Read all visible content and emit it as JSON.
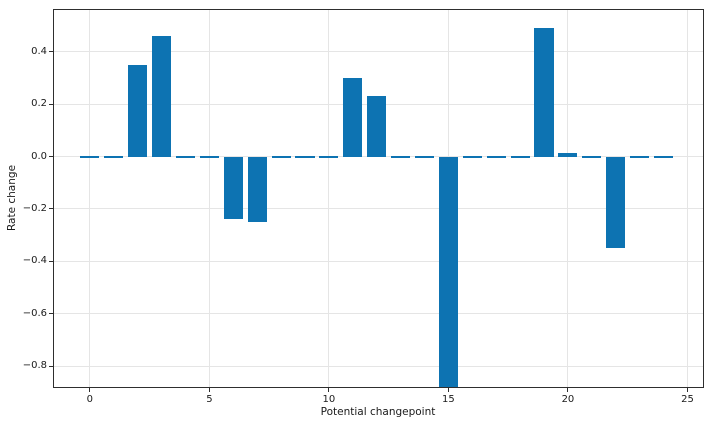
{
  "chart_data": {
    "type": "bar",
    "title": "",
    "xlabel": "Potential changepoint",
    "ylabel": "Rate change",
    "x": [
      0,
      1,
      2,
      3,
      4,
      5,
      6,
      7,
      8,
      9,
      10,
      11,
      12,
      13,
      14,
      15,
      16,
      17,
      18,
      19,
      20,
      21,
      22,
      23,
      24
    ],
    "values": [
      0,
      0,
      0.35,
      0.46,
      0,
      0,
      -0.24,
      -0.25,
      0,
      0,
      0,
      0.3,
      0.23,
      0,
      0,
      -0.88,
      0,
      0,
      0,
      0.49,
      0.015,
      0,
      -0.35,
      0,
      0
    ],
    "bar_width": 0.8,
    "bar_color": "#0d73b2",
    "xlim": [
      -1.5,
      25.65
    ],
    "ylim": [
      -0.88,
      0.56
    ],
    "xticks": {
      "values": [
        0,
        5,
        10,
        15,
        20,
        25
      ],
      "labels": [
        "0",
        "5",
        "10",
        "15",
        "20",
        "25"
      ]
    },
    "yticks": {
      "values": [
        0.4,
        0.2,
        0,
        -0.2,
        -0.4,
        -0.6,
        -0.8
      ],
      "labels": [
        "0.4",
        "0.2",
        "0.0",
        "−0.2",
        "−0.4",
        "−0.6",
        "−0.8"
      ]
    },
    "grid": true,
    "legend_position": "none",
    "colors": {
      "grid": "#e5e5e5",
      "spine": "#2e2e2e",
      "text": "#1a1a1a",
      "background": "#ffffff"
    }
  }
}
